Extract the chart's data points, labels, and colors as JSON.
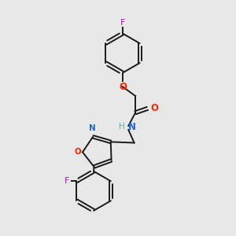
{
  "background_color": "#e8e8e8",
  "bond_color": "#1a1a1a",
  "O_color": "#ff2200",
  "N_color": "#2266cc",
  "F_color": "#cc00cc",
  "H_color": "#66aaaa",
  "figsize": [
    3.0,
    3.0
  ],
  "dpi": 100,
  "xlim": [
    0,
    10
  ],
  "ylim": [
    0,
    10
  ]
}
